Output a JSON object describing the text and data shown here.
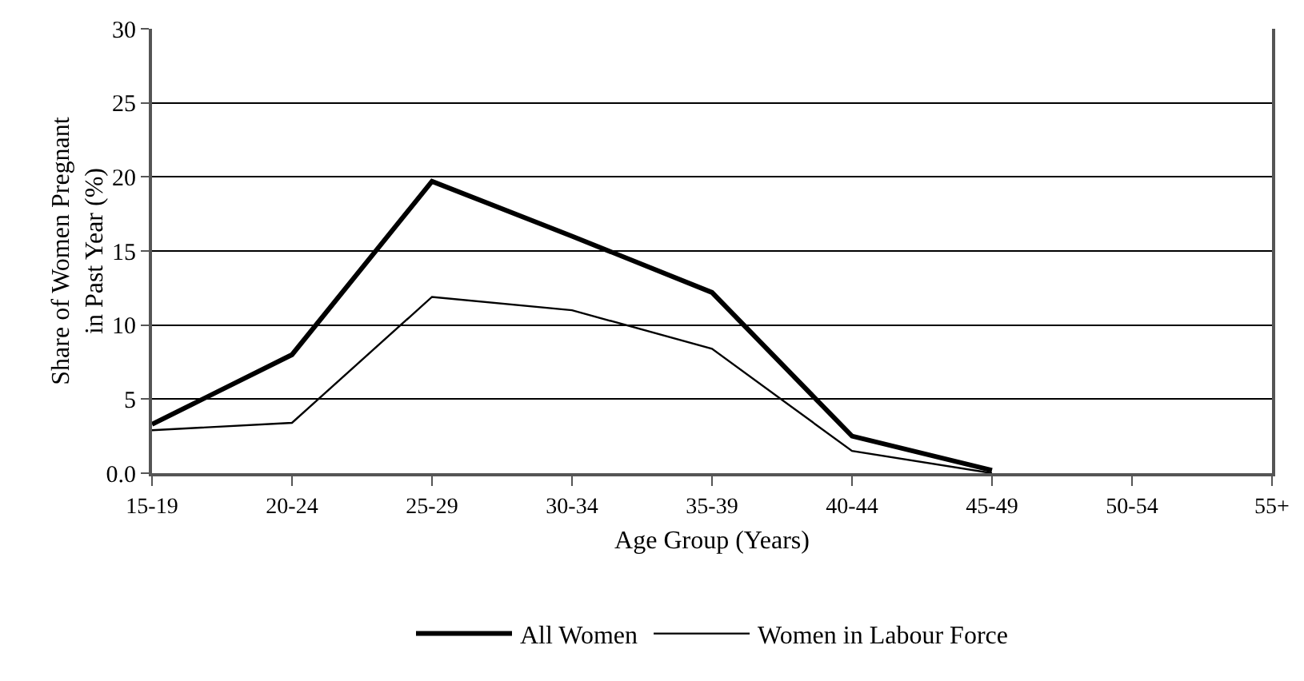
{
  "chart_data": {
    "type": "line",
    "xlabel": "Age Group (Years)",
    "ylabel": "Share of Women Pregnant in Past Year (%)",
    "categories": [
      "15-19",
      "20-24",
      "25-29",
      "30-34",
      "35-39",
      "40-44",
      "45-49",
      "50-54",
      "55+"
    ],
    "series": [
      {
        "name": "All Women",
        "color": "#000000",
        "values": [
          3.3,
          8.0,
          19.7,
          16.0,
          12.2,
          2.5,
          0.2,
          null,
          null
        ]
      },
      {
        "name": "Women in Labour Force",
        "color": "#000000",
        "values": [
          2.9,
          3.4,
          11.9,
          11.0,
          8.4,
          1.5,
          0.0,
          null,
          null
        ]
      }
    ],
    "ylim": [
      0,
      30
    ],
    "yticks": [
      {
        "value": 0,
        "label": "0.0"
      },
      5,
      10,
      15,
      20,
      25,
      30
    ],
    "grid": "y",
    "legend": "bottom",
    "marker": "none",
    "line_style": "solid"
  }
}
